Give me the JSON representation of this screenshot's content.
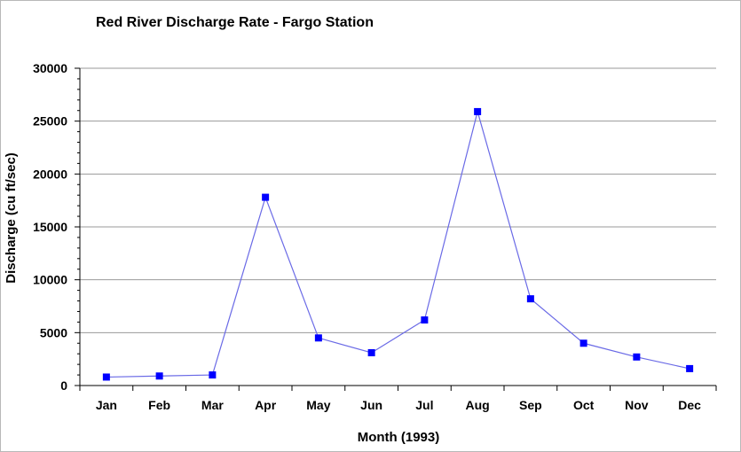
{
  "chart_data": {
    "type": "line",
    "title": "Red River Discharge Rate - Fargo Station",
    "xlabel": "Month (1993)",
    "ylabel": "Discharge (cu ft/sec)",
    "categories": [
      "Jan",
      "Feb",
      "Mar",
      "Apr",
      "May",
      "Jun",
      "Jul",
      "Aug",
      "Sep",
      "Oct",
      "Nov",
      "Dec"
    ],
    "series": [
      {
        "values": [
          800,
          900,
          1000,
          17800,
          4500,
          3100,
          6200,
          25900,
          8200,
          4000,
          2700,
          1600
        ],
        "color": "#0000ff",
        "line_color": "#6a6ae6",
        "marker": "square"
      }
    ],
    "ylim": [
      0,
      30000
    ],
    "yticks": [
      0,
      5000,
      10000,
      15000,
      20000,
      25000,
      30000
    ],
    "grid": true,
    "legend": "none"
  },
  "colors": {
    "gridline": "#999999",
    "axis": "#000000",
    "frame_border": "#b8b8b8"
  }
}
